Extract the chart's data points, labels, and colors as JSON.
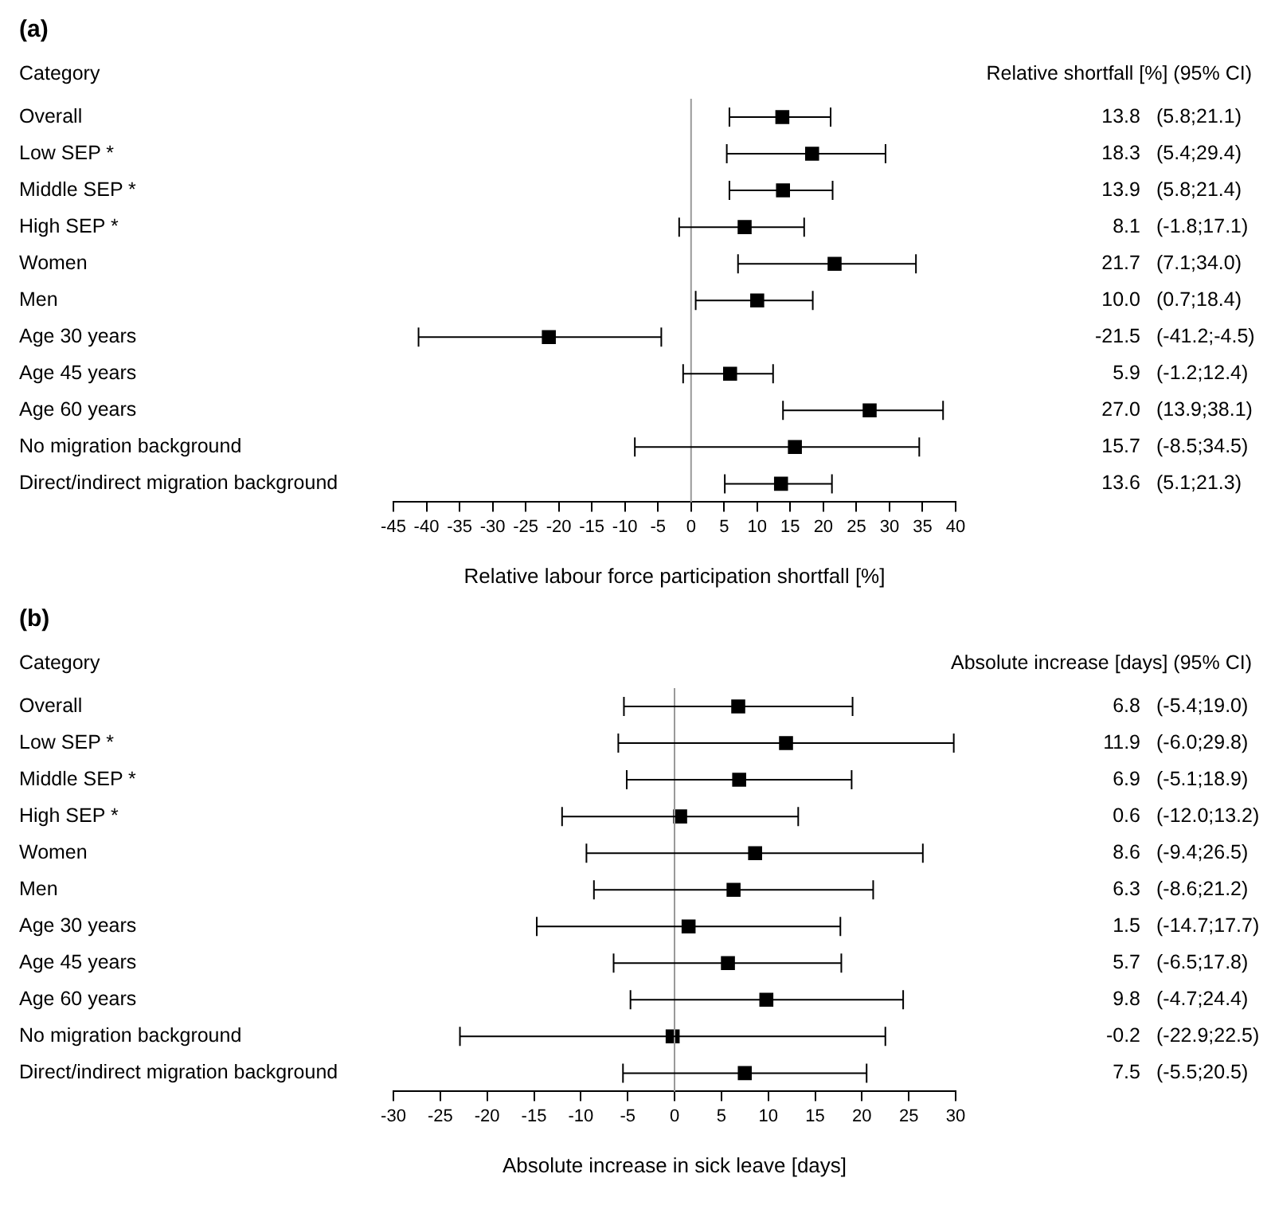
{
  "chart_data": [
    {
      "type": "scatter",
      "orientation": "horizontal",
      "title": "(a)",
      "xlabel": "Relative labour force participation shortfall [%]",
      "categories": [
        "Overall",
        "Low SEP *",
        "Middle SEP *",
        "High SEP *",
        "Women",
        "Men",
        "Age 30 years",
        "Age 45 years",
        "Age 60 years",
        "No migration background",
        "Direct/indirect migration background"
      ],
      "values": [
        13.8,
        18.3,
        13.9,
        8.1,
        21.7,
        10.0,
        -21.5,
        5.9,
        27.0,
        15.7,
        13.6
      ],
      "value_labels": [
        "13.8",
        "18.3",
        "13.9",
        "8.1",
        "21.7",
        "10.0",
        "-21.5",
        "5.9",
        "27.0",
        "15.7",
        "13.6"
      ],
      "errors": [
        [
          5.8,
          21.1
        ],
        [
          5.4,
          29.4
        ],
        [
          5.8,
          21.4
        ],
        [
          -1.8,
          17.1
        ],
        [
          7.1,
          34.0
        ],
        [
          0.7,
          18.4
        ],
        [
          -41.2,
          -4.5
        ],
        [
          -1.2,
          12.4
        ],
        [
          13.9,
          38.1
        ],
        [
          -8.5,
          34.5
        ],
        [
          5.1,
          21.3
        ]
      ],
      "color": "#000000",
      "marker": "square",
      "xlim": [
        -45,
        40
      ],
      "xticks": [
        -45,
        -40,
        -35,
        -30,
        -25,
        -20,
        -15,
        -10,
        -5,
        0,
        5,
        10,
        15,
        20,
        25,
        30,
        35,
        40
      ],
      "grid": false,
      "legend": false,
      "ref_lines": [
        {
          "axis": "x",
          "value": 0,
          "color": "#999999"
        }
      ],
      "annotations": [
        "Category",
        "Relative shortfall [%] (95% CI)",
        "(5.8;21.1)",
        "(5.4;29.4)",
        "(5.8;21.4)",
        "(-1.8;17.1)",
        "(7.1;34.0)",
        "(0.7;18.4)",
        "(-41.2;-4.5)",
        "(-1.2;12.4)",
        "(13.9;38.1)",
        "(-8.5;34.5)",
        "(5.1;21.3)"
      ]
    },
    {
      "type": "scatter",
      "orientation": "horizontal",
      "title": "(b)",
      "xlabel": "Absolute increase in sick leave [days]",
      "categories": [
        "Overall",
        "Low SEP *",
        "Middle SEP *",
        "High SEP *",
        "Women",
        "Men",
        "Age 30 years",
        "Age 45 years",
        "Age 60 years",
        "No migration background",
        "Direct/indirect migration background"
      ],
      "values": [
        6.8,
        11.9,
        6.9,
        0.6,
        8.6,
        6.3,
        1.5,
        5.7,
        9.8,
        -0.2,
        7.5
      ],
      "value_labels": [
        "6.8",
        "11.9",
        "6.9",
        "0.6",
        "8.6",
        "6.3",
        "1.5",
        "5.7",
        "9.8",
        "-0.2",
        "7.5"
      ],
      "errors": [
        [
          -5.4,
          19.0
        ],
        [
          -6.0,
          29.8
        ],
        [
          -5.1,
          18.9
        ],
        [
          -12.0,
          13.2
        ],
        [
          -9.4,
          26.5
        ],
        [
          -8.6,
          21.2
        ],
        [
          -14.7,
          17.7
        ],
        [
          -6.5,
          17.8
        ],
        [
          -4.7,
          24.4
        ],
        [
          -22.9,
          22.5
        ],
        [
          -5.5,
          20.5
        ]
      ],
      "color": "#000000",
      "marker": "square",
      "xlim": [
        -30,
        30
      ],
      "xticks": [
        -30,
        -25,
        -20,
        -15,
        -10,
        -5,
        0,
        5,
        10,
        15,
        20,
        25,
        30
      ],
      "grid": false,
      "legend": false,
      "ref_lines": [
        {
          "axis": "x",
          "value": 0,
          "color": "#999999"
        }
      ],
      "annotations": [
        "Category",
        "Absolute increase [days] (95% CI)",
        "(-5.4;19.0)",
        "(-6.0;29.8)",
        "(-5.1;18.9)",
        "(-12.0;13.2)",
        "(-9.4;26.5)",
        "(-8.6;21.2)",
        "(-14.7;17.7)",
        "(-6.5;17.8)",
        "(-4.7;24.4)",
        "(-22.9;22.5)",
        "(-5.5;20.5)"
      ]
    }
  ]
}
